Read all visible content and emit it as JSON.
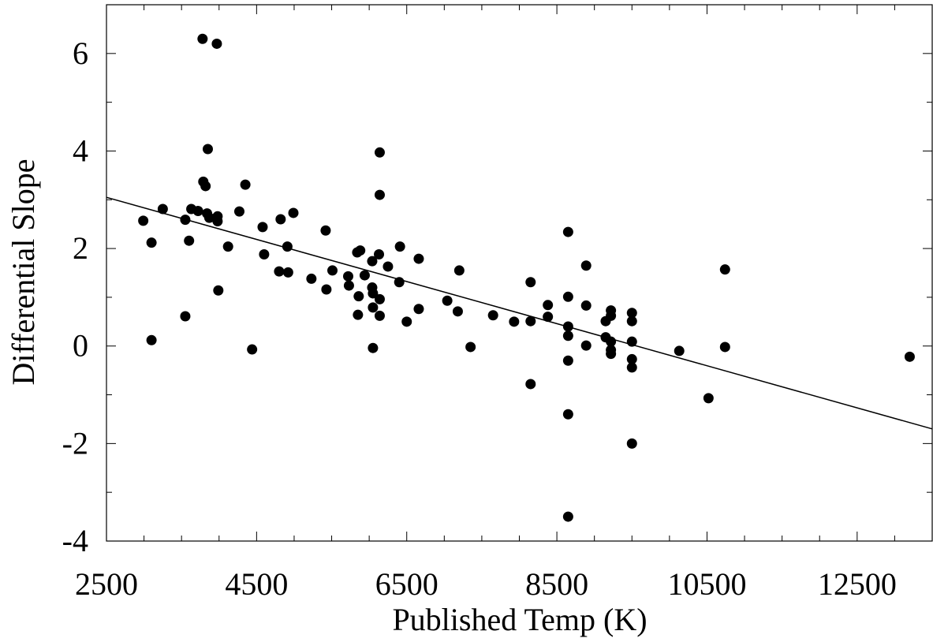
{
  "chart_data": {
    "type": "scatter",
    "xlabel": "Published Temp (K)",
    "ylabel": "Differential Slope",
    "xlim": [
      2500,
      13500
    ],
    "ylim": [
      -4,
      7
    ],
    "x_ticks": [
      2500,
      4500,
      6500,
      8500,
      10500,
      12500
    ],
    "x_tick_labels": [
      "2500",
      "4500",
      "6500",
      "8500",
      "10500",
      "12500"
    ],
    "y_ticks": [
      -4,
      -2,
      0,
      2,
      4,
      6
    ],
    "y_tick_labels": [
      "-4",
      "-2",
      "0",
      "2",
      "4",
      "6"
    ],
    "grid": false,
    "legend": "none",
    "colors": {
      "points": "#000000",
      "line": "#000000",
      "background": "#ffffff"
    },
    "trend_line": {
      "x": [
        2500,
        13500
      ],
      "y": [
        3.05,
        -1.7
      ]
    },
    "points": [
      [
        2990,
        2.57
      ],
      [
        3100,
        2.12
      ],
      [
        3100,
        0.12
      ],
      [
        3250,
        2.81
      ],
      [
        3550,
        2.59
      ],
      [
        3550,
        0.61
      ],
      [
        3600,
        2.16
      ],
      [
        3630,
        2.81
      ],
      [
        3720,
        2.77
      ],
      [
        3780,
        6.3
      ],
      [
        3790,
        3.37
      ],
      [
        3820,
        3.28
      ],
      [
        3840,
        2.72
      ],
      [
        3850,
        4.04
      ],
      [
        3870,
        2.63
      ],
      [
        3970,
        6.2
      ],
      [
        3980,
        2.66
      ],
      [
        3980,
        2.56
      ],
      [
        3990,
        1.14
      ],
      [
        4120,
        2.04
      ],
      [
        4270,
        2.76
      ],
      [
        4350,
        3.31
      ],
      [
        4440,
        -0.07
      ],
      [
        4580,
        2.44
      ],
      [
        4600,
        1.88
      ],
      [
        4800,
        1.53
      ],
      [
        4820,
        2.6
      ],
      [
        4910,
        2.04
      ],
      [
        4920,
        1.51
      ],
      [
        4990,
        2.73
      ],
      [
        5230,
        1.38
      ],
      [
        5420,
        2.37
      ],
      [
        5430,
        1.16
      ],
      [
        5510,
        1.55
      ],
      [
        5720,
        1.43
      ],
      [
        5730,
        1.24
      ],
      [
        5840,
        1.92
      ],
      [
        5850,
        0.64
      ],
      [
        5860,
        1.02
      ],
      [
        5880,
        1.96
      ],
      [
        5940,
        1.45
      ],
      [
        6040,
        1.74
      ],
      [
        6040,
        1.2
      ],
      [
        6050,
        1.08
      ],
      [
        6050,
        0.79
      ],
      [
        6050,
        -0.04
      ],
      [
        6130,
        1.88
      ],
      [
        6140,
        0.96
      ],
      [
        6140,
        0.62
      ],
      [
        6140,
        3.97
      ],
      [
        6140,
        3.1
      ],
      [
        6250,
        1.63
      ],
      [
        6400,
        1.31
      ],
      [
        6410,
        2.04
      ],
      [
        6500,
        0.5
      ],
      [
        6660,
        1.79
      ],
      [
        6660,
        0.76
      ],
      [
        7040,
        0.93
      ],
      [
        7180,
        0.71
      ],
      [
        7200,
        1.55
      ],
      [
        7350,
        -0.02
      ],
      [
        7650,
        0.63
      ],
      [
        7930,
        0.5
      ],
      [
        8150,
        1.31
      ],
      [
        8150,
        0.51
      ],
      [
        8150,
        -0.78
      ],
      [
        8380,
        0.84
      ],
      [
        8380,
        0.6
      ],
      [
        8650,
        2.34
      ],
      [
        8650,
        1.01
      ],
      [
        8650,
        0.4
      ],
      [
        8650,
        0.21
      ],
      [
        8650,
        -0.3
      ],
      [
        8650,
        -1.4
      ],
      [
        8650,
        -3.5
      ],
      [
        8890,
        1.65
      ],
      [
        8890,
        0.83
      ],
      [
        8890,
        0.01
      ],
      [
        9150,
        0.51
      ],
      [
        9150,
        0.18
      ],
      [
        9220,
        0.73
      ],
      [
        9220,
        0.62
      ],
      [
        9220,
        0.09
      ],
      [
        9220,
        -0.08
      ],
      [
        9220,
        -0.16
      ],
      [
        9500,
        0.68
      ],
      [
        9500,
        0.51
      ],
      [
        9500,
        0.09
      ],
      [
        9500,
        -0.27
      ],
      [
        9500,
        -0.44
      ],
      [
        9500,
        -2.0
      ],
      [
        10130,
        -0.1
      ],
      [
        10520,
        -1.07
      ],
      [
        10740,
        1.57
      ],
      [
        10740,
        -0.02
      ],
      [
        13200,
        -0.22
      ]
    ]
  }
}
